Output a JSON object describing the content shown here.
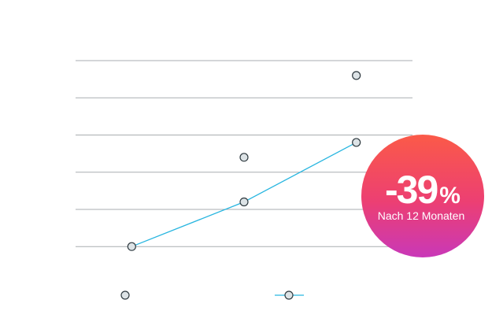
{
  "chart_data": {
    "type": "line",
    "categories": [
      null,
      null,
      null
    ],
    "series": [
      {
        "color": "#dde3e6",
        "mode": "markers",
        "values": [
          null,
          2.4,
          4.6
        ]
      },
      {
        "color": "#29b6e0",
        "mode": "lines+markers",
        "values": [
          0,
          1.2,
          2.8
        ]
      }
    ],
    "ylim": [
      -0.8,
      5
    ],
    "yticks": [
      0,
      1,
      2,
      3,
      4,
      5
    ],
    "grid": true,
    "badge": {
      "value": "-39",
      "unit": "%",
      "caption": "Nach 12 Monaten"
    }
  }
}
